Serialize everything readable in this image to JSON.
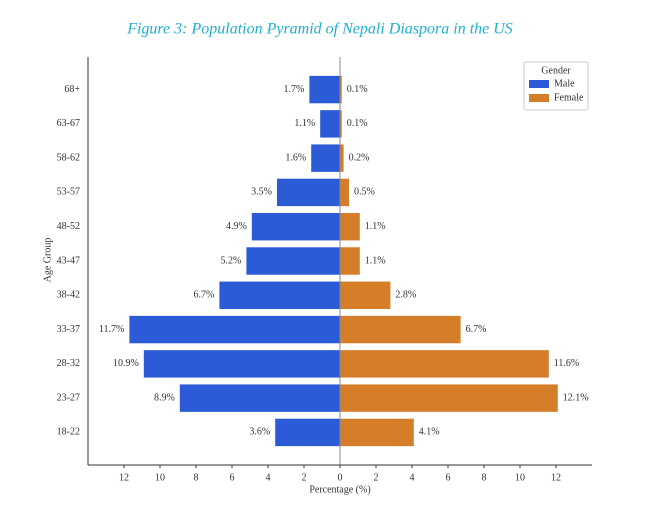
{
  "chart_data": {
    "type": "pyramid",
    "title": "Figure 3: Population Pyramid of Nepali Diaspora in the US",
    "x_label": "Percentage (%)",
    "y_label": "Age Group",
    "categories": [
      "68+",
      "63-67",
      "58-62",
      "53-57",
      "48-52",
      "43-47",
      "38-42",
      "33-37",
      "28-32",
      "23-27",
      "18-22"
    ],
    "series": [
      {
        "name": "Male",
        "color": "#2b5bd7",
        "side": "left",
        "values": [
          1.7,
          1.1,
          1.6,
          3.5,
          4.9,
          5.2,
          6.7,
          11.7,
          10.9,
          8.9,
          3.6
        ],
        "value_labels": [
          "1.7%",
          "1.1%",
          "1.6%",
          "3.5%",
          "4.9%",
          "5.2%",
          "6.7%",
          "11.7%",
          "10.9%",
          "8.9%",
          "3.6%"
        ]
      },
      {
        "name": "Female",
        "color": "#d67d2a",
        "side": "right",
        "values": [
          0.1,
          0.1,
          0.2,
          0.5,
          1.1,
          1.1,
          2.8,
          6.7,
          11.6,
          12.1,
          4.1
        ],
        "value_labels": [
          "0.1%",
          "0.1%",
          "0.2%",
          "0.5%",
          "1.1%",
          "1.1%",
          "2.8%",
          "6.7%",
          "11.6%",
          "12.1%",
          "4.1%"
        ]
      }
    ],
    "xlim": [
      -14,
      14
    ],
    "xticks": [
      {
        "value": -12,
        "label": "12"
      },
      {
        "value": -10,
        "label": "10"
      },
      {
        "value": -8,
        "label": "8"
      },
      {
        "value": -6,
        "label": "6"
      },
      {
        "value": -4,
        "label": "4"
      },
      {
        "value": -2,
        "label": "2"
      },
      0,
      2,
      4,
      6,
      8,
      10,
      12
    ],
    "legend_title": "Gender",
    "legend_position": "upper right",
    "grid": false
  }
}
